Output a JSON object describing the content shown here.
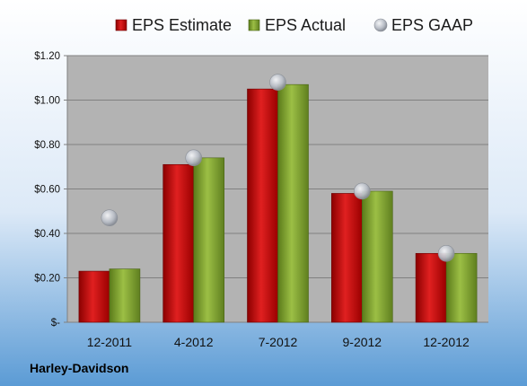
{
  "company": "Harley-Davidson",
  "chart_data": {
    "type": "bar",
    "categories": [
      "12-2011",
      "4-2012",
      "7-2012",
      "9-2012",
      "12-2012"
    ],
    "series": [
      {
        "name": "EPS Estimate",
        "values": [
          0.23,
          0.71,
          1.05,
          0.58,
          0.31
        ],
        "color": "#c00000"
      },
      {
        "name": "EPS Actual",
        "values": [
          0.24,
          0.74,
          1.07,
          0.59,
          0.31
        ],
        "color": "#7f9f2f"
      }
    ],
    "overlay": {
      "name": "EPS GAAP",
      "type": "scatter",
      "values": [
        0.47,
        0.74,
        1.08,
        0.59,
        0.31
      ],
      "color": "#b8bdc6"
    },
    "ylim": [
      0,
      1.2
    ],
    "yticks": [
      0,
      0.2,
      0.4,
      0.6,
      0.8,
      1.0,
      1.2
    ],
    "ytick_labels": [
      "$-",
      "$0.20",
      "$0.40",
      "$0.60",
      "$0.80",
      "$1.00",
      "$1.20"
    ],
    "grid": true,
    "legend": "top",
    "plot_background": "#b3b3b3",
    "page_background_top": "#ffffff",
    "page_background_bottom": "#5b9bd5"
  }
}
